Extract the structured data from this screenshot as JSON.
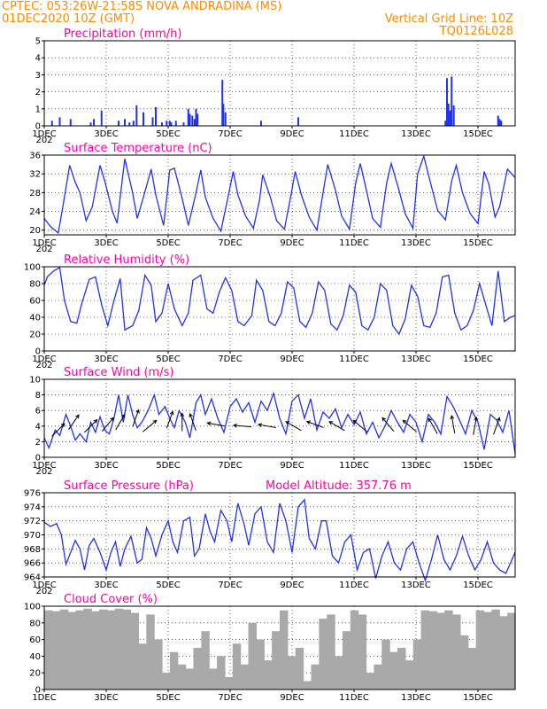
{
  "header": {
    "line1": "CPTEC:   053:26W-21:58S   NOVA ANDRADINA (MS)",
    "line2_left": "01DEC2020 10Z (GMT)",
    "line2_right": "Vertical Grid Line: 10Z",
    "code": "TQ0126L028"
  },
  "colors": {
    "header": "#ff8c00",
    "title": "#ff00aa",
    "series": "#2233ee",
    "cloud": "#a9a9a9",
    "grid": "#000000"
  },
  "time_axis": {
    "start_day": 1,
    "end_day": 16.2,
    "ticks": [
      {
        "day": 1,
        "label": "1DEC"
      },
      {
        "day": 3,
        "label": "3DEC"
      },
      {
        "day": 5,
        "label": "5DEC"
      },
      {
        "day": 7,
        "label": "7DEC"
      },
      {
        "day": 9,
        "label": "9DEC"
      },
      {
        "day": 11,
        "label": "11DEC"
      },
      {
        "day": 13,
        "label": "13DEC"
      },
      {
        "day": 15,
        "label": "15DEC"
      }
    ],
    "year_fragment": "202"
  },
  "chart_data": [
    {
      "type": "bar",
      "title": "Precipitation  (mm/h)",
      "ylim": [
        0,
        5
      ],
      "yticks": [
        0,
        1,
        2,
        3,
        4,
        5
      ],
      "x": [
        1.25,
        1.5,
        1.85,
        2.5,
        2.6,
        2.85,
        3.4,
        3.6,
        3.75,
        3.88,
        3.98,
        4.2,
        4.5,
        4.6,
        4.8,
        4.95,
        5.05,
        5.1,
        5.25,
        5.5,
        5.65,
        5.7,
        5.78,
        5.85,
        5.9,
        5.95,
        6.75,
        6.78,
        6.85,
        8.0,
        9.2,
        13.95,
        14.0,
        14.05,
        14.1,
        14.15,
        14.22,
        15.65,
        15.7,
        15.75
      ],
      "values": [
        0.3,
        0.5,
        0.4,
        0.2,
        0.4,
        0.9,
        0.3,
        0.4,
        0.2,
        0.3,
        1.2,
        0.8,
        0.5,
        1.1,
        0.2,
        0.3,
        0.3,
        0.2,
        0.3,
        0.2,
        1.0,
        0.7,
        0.6,
        0.4,
        1.0,
        0.7,
        2.7,
        1.3,
        0.8,
        0.3,
        0.5,
        0.3,
        2.8,
        1.3,
        0.9,
        2.9,
        1.2,
        0.6,
        0.4,
        0.3
      ]
    },
    {
      "type": "line",
      "title": "Surface Temperature (nC)",
      "ylim": [
        19,
        36
      ],
      "yticks": [
        20,
        24,
        28,
        32,
        36
      ],
      "x": [
        1.0,
        1.2,
        1.45,
        1.6,
        1.82,
        2.0,
        2.15,
        2.35,
        2.55,
        2.8,
        2.95,
        3.2,
        3.35,
        3.6,
        3.85,
        4.0,
        4.2,
        4.45,
        4.6,
        4.85,
        5.05,
        5.2,
        5.45,
        5.65,
        5.9,
        6.05,
        6.2,
        6.45,
        6.7,
        6.9,
        7.1,
        7.25,
        7.5,
        7.75,
        7.95,
        8.05,
        8.3,
        8.5,
        8.75,
        8.95,
        9.1,
        9.3,
        9.55,
        9.8,
        10.0,
        10.15,
        10.4,
        10.6,
        10.85,
        11.05,
        11.2,
        11.4,
        11.6,
        11.85,
        12.05,
        12.2,
        12.45,
        12.65,
        12.9,
        13.05,
        13.25,
        13.45,
        13.7,
        13.95,
        14.15,
        14.3,
        14.5,
        14.75,
        15.0,
        15.2,
        15.35,
        15.55,
        15.7,
        15.95,
        16.2
      ],
      "values": [
        22.5,
        20.8,
        19.4,
        25.0,
        33.8,
        30.2,
        28.0,
        22.0,
        25.0,
        33.8,
        30.5,
        24.0,
        21.5,
        35.2,
        28.0,
        22.5,
        27.0,
        33.0,
        27.5,
        21.0,
        32.8,
        33.2,
        26.8,
        21.0,
        28.0,
        32.8,
        27.0,
        22.5,
        19.8,
        26.0,
        32.5,
        27.5,
        23.0,
        20.4,
        26.5,
        31.8,
        27.0,
        22.0,
        20.2,
        27.0,
        32.5,
        27.5,
        22.8,
        20.0,
        28.0,
        34.0,
        28.5,
        23.0,
        20.2,
        30.0,
        34.2,
        28.5,
        22.5,
        20.6,
        30.0,
        34.2,
        28.5,
        23.5,
        20.4,
        32.0,
        35.8,
        30.5,
        24.2,
        22.2,
        30.5,
        33.8,
        28.0,
        23.5,
        21.4,
        32.5,
        29.8,
        22.8,
        25.0,
        33.0,
        31.2
      ]
    },
    {
      "type": "line",
      "title": "Relative Humidity  (%)",
      "ylim": [
        0,
        100
      ],
      "yticks": [
        0,
        20,
        40,
        60,
        80,
        100
      ],
      "x": [
        1.0,
        1.1,
        1.3,
        1.5,
        1.65,
        1.85,
        2.05,
        2.2,
        2.45,
        2.65,
        2.85,
        3.05,
        3.25,
        3.45,
        3.6,
        3.85,
        4.05,
        4.25,
        4.45,
        4.6,
        4.8,
        5.0,
        5.2,
        5.45,
        5.65,
        5.8,
        6.05,
        6.25,
        6.45,
        6.65,
        6.85,
        7.05,
        7.25,
        7.45,
        7.7,
        7.85,
        8.05,
        8.25,
        8.45,
        8.65,
        8.85,
        9.05,
        9.25,
        9.45,
        9.65,
        9.85,
        10.05,
        10.25,
        10.45,
        10.65,
        10.85,
        11.05,
        11.25,
        11.45,
        11.65,
        11.85,
        12.05,
        12.25,
        12.45,
        12.65,
        12.85,
        13.05,
        13.25,
        13.45,
        13.65,
        13.85,
        14.05,
        14.25,
        14.45,
        14.65,
        14.85,
        15.05,
        15.25,
        15.45,
        15.65,
        15.85,
        16.05,
        16.2
      ],
      "values": [
        78,
        88,
        95,
        99,
        60,
        35,
        33,
        55,
        85,
        88,
        55,
        30,
        60,
        86,
        25,
        30,
        48,
        90,
        78,
        35,
        45,
        80,
        50,
        30,
        45,
        84,
        90,
        50,
        45,
        70,
        87,
        72,
        35,
        30,
        42,
        84,
        72,
        35,
        30,
        45,
        82,
        75,
        35,
        28,
        45,
        82,
        72,
        32,
        25,
        42,
        78,
        70,
        30,
        25,
        40,
        80,
        72,
        30,
        20,
        38,
        78,
        65,
        30,
        28,
        45,
        88,
        90,
        45,
        25,
        30,
        48,
        80,
        55,
        30,
        95,
        35,
        40,
        42
      ]
    },
    {
      "type": "line",
      "title": "Surface Wind  (m/s)",
      "ylim": [
        0,
        10
      ],
      "yticks": [
        0,
        2,
        4,
        6,
        8,
        10
      ],
      "x": [
        1.0,
        1.15,
        1.35,
        1.5,
        1.7,
        1.85,
        2.0,
        2.15,
        2.35,
        2.5,
        2.65,
        2.8,
        2.95,
        3.1,
        3.25,
        3.4,
        3.55,
        3.7,
        3.85,
        4.0,
        4.15,
        4.35,
        4.55,
        4.7,
        4.9,
        5.05,
        5.2,
        5.35,
        5.55,
        5.7,
        5.9,
        6.05,
        6.2,
        6.4,
        6.6,
        6.8,
        7.0,
        7.2,
        7.4,
        7.6,
        7.8,
        8.0,
        8.2,
        8.4,
        8.6,
        8.8,
        9.0,
        9.2,
        9.4,
        9.6,
        9.8,
        10.0,
        10.2,
        10.4,
        10.6,
        10.8,
        11.0,
        11.2,
        11.4,
        11.6,
        11.8,
        12.0,
        12.2,
        12.4,
        12.6,
        12.8,
        13.0,
        13.2,
        13.4,
        13.6,
        13.8,
        14.0,
        14.2,
        14.4,
        14.6,
        14.8,
        15.0,
        15.2,
        15.4,
        15.6,
        15.8,
        16.0,
        16.2
      ],
      "values": [
        2.5,
        1.2,
        3.5,
        2.8,
        5.5,
        4.0,
        2.2,
        3.0,
        2.0,
        4.5,
        3.2,
        5.2,
        3.5,
        3.0,
        5.0,
        8.0,
        4.5,
        8.0,
        5.5,
        3.8,
        4.5,
        6.0,
        8.0,
        5.5,
        6.5,
        5.0,
        3.8,
        6.0,
        4.5,
        2.5,
        7.0,
        8.0,
        5.5,
        7.5,
        5.0,
        3.2,
        6.5,
        7.5,
        5.8,
        7.0,
        4.5,
        7.2,
        6.0,
        8.2,
        5.0,
        3.0,
        7.2,
        8.0,
        5.0,
        7.5,
        3.5,
        5.8,
        5.0,
        6.2,
        3.8,
        5.5,
        4.2,
        5.8,
        3.0,
        4.5,
        2.5,
        4.0,
        6.0,
        4.5,
        3.2,
        5.5,
        4.5,
        2.0,
        5.5,
        4.5,
        3.0,
        7.8,
        6.5,
        4.8,
        3.0,
        6.0,
        4.5,
        1.0,
        5.5,
        4.8,
        3.2,
        6.0,
        0.5
      ],
      "barbs": [
        {
          "day": 1.45,
          "speed": 3.5,
          "dir": 225
        },
        {
          "day": 1.95,
          "speed": 4.5,
          "dir": 215
        },
        {
          "day": 2.5,
          "speed": 4.0,
          "dir": 225
        },
        {
          "day": 3.05,
          "speed": 4.2,
          "dir": 220
        },
        {
          "day": 3.45,
          "speed": 4.5,
          "dir": 210
        },
        {
          "day": 3.95,
          "speed": 5.0,
          "dir": 200
        },
        {
          "day": 4.4,
          "speed": 4.0,
          "dir": 230
        },
        {
          "day": 5.05,
          "speed": 4.8,
          "dir": 200
        },
        {
          "day": 5.45,
          "speed": 4.5,
          "dir": 180
        },
        {
          "day": 5.8,
          "speed": 4.5,
          "dir": 160
        },
        {
          "day": 6.55,
          "speed": 4.2,
          "dir": 100
        },
        {
          "day": 7.4,
          "speed": 4.0,
          "dir": 95
        },
        {
          "day": 8.2,
          "speed": 4.0,
          "dir": 100
        },
        {
          "day": 9.05,
          "speed": 4.0,
          "dir": 120
        },
        {
          "day": 9.75,
          "speed": 4.2,
          "dir": 110
        },
        {
          "day": 10.45,
          "speed": 4.0,
          "dir": 120
        },
        {
          "day": 11.2,
          "speed": 4.0,
          "dir": 130
        },
        {
          "day": 12.1,
          "speed": 4.2,
          "dir": 140
        },
        {
          "day": 12.8,
          "speed": 4.0,
          "dir": 130
        },
        {
          "day": 13.55,
          "speed": 4.0,
          "dir": 150
        },
        {
          "day": 14.2,
          "speed": 4.2,
          "dir": 170
        },
        {
          "day": 14.9,
          "speed": 4.0,
          "dir": 190
        },
        {
          "day": 15.6,
          "speed": 4.0,
          "dir": 200
        }
      ]
    },
    {
      "type": "line",
      "title": "Surface Pressure (hPa)",
      "annotation": "Model Altitude: 357.76 m",
      "ylim": [
        964,
        976
      ],
      "yticks": [
        964,
        966,
        968,
        970,
        972,
        974,
        976
      ],
      "x": [
        1.0,
        1.2,
        1.4,
        1.55,
        1.7,
        1.85,
        2.0,
        2.15,
        2.3,
        2.45,
        2.6,
        2.8,
        3.0,
        3.15,
        3.3,
        3.45,
        3.6,
        3.8,
        4.0,
        4.15,
        4.3,
        4.45,
        4.6,
        4.8,
        5.0,
        5.15,
        5.3,
        5.5,
        5.7,
        5.85,
        6.0,
        6.2,
        6.35,
        6.5,
        6.7,
        6.9,
        7.05,
        7.25,
        7.45,
        7.6,
        7.8,
        8.0,
        8.2,
        8.4,
        8.6,
        8.8,
        9.0,
        9.2,
        9.4,
        9.55,
        9.75,
        9.95,
        10.1,
        10.3,
        10.5,
        10.7,
        10.9,
        11.1,
        11.3,
        11.5,
        11.7,
        11.9,
        12.1,
        12.3,
        12.5,
        12.7,
        12.9,
        13.1,
        13.3,
        13.5,
        13.7,
        13.9,
        14.1,
        14.3,
        14.5,
        14.7,
        14.9,
        15.1,
        15.3,
        15.5,
        15.7,
        15.9,
        16.2
      ],
      "values": [
        971.8,
        971.2,
        971.6,
        970.0,
        965.8,
        967.5,
        969.2,
        968.0,
        965.0,
        968.5,
        969.5,
        967.5,
        965.0,
        967.5,
        969.0,
        965.5,
        968.0,
        969.8,
        966.0,
        966.5,
        971.0,
        969.5,
        967.0,
        970.0,
        972.0,
        969.0,
        967.5,
        972.0,
        972.5,
        967.0,
        968.0,
        973.0,
        970.5,
        969.0,
        973.5,
        972.0,
        969.0,
        974.5,
        971.5,
        968.5,
        973.0,
        974.0,
        969.0,
        967.5,
        974.5,
        972.0,
        967.5,
        974.0,
        975.0,
        969.5,
        968.0,
        972.0,
        972.0,
        967.0,
        966.0,
        969.0,
        970.0,
        965.0,
        967.5,
        968.0,
        963.8,
        967.0,
        969.0,
        966.0,
        965.0,
        968.0,
        969.0,
        966.0,
        963.5,
        966.5,
        970.0,
        966.5,
        965.0,
        967.0,
        969.8,
        967.0,
        965.0,
        966.5,
        969.0,
        966.0,
        965.0,
        964.5,
        967.5
      ]
    },
    {
      "type": "bar",
      "title": "Cloud Cover  (%)",
      "ylim": [
        0,
        100
      ],
      "yticks": [
        0,
        20,
        40,
        60,
        80,
        100
      ],
      "x": [
        1.0,
        1.5,
        2.0,
        2.5,
        3.0,
        3.5,
        4.0,
        4.5,
        5.0,
        5.5,
        6.0,
        6.5,
        6.7,
        6.9,
        7.1,
        7.3,
        7.5,
        7.7,
        7.9,
        8.1,
        8.3,
        8.5,
        8.7,
        8.9,
        9.1,
        9.3,
        9.5,
        9.7,
        9.9,
        10.1,
        10.3,
        10.5,
        10.7,
        10.9,
        11.1,
        11.3,
        11.5,
        11.7,
        11.9,
        12.1,
        12.3,
        12.5,
        12.7,
        12.9,
        13.1,
        13.3,
        13.5,
        13.7,
        13.9,
        14.1,
        14.3,
        14.5,
        14.7,
        14.9,
        15.1,
        15.3,
        15.5,
        15.7,
        15.9,
        16.1
      ],
      "values": [
        95,
        94,
        96,
        93,
        95,
        97,
        94,
        96,
        95,
        97,
        96,
        92,
        55,
        90,
        60,
        20,
        45,
        30,
        25,
        50,
        70,
        25,
        40,
        15,
        55,
        30,
        80,
        60,
        35,
        70,
        95,
        40,
        50,
        10,
        30,
        85,
        90,
        40,
        70,
        95,
        90,
        20,
        30,
        60,
        45,
        50,
        35,
        60,
        95,
        94,
        92,
        95,
        90,
        65,
        50,
        95,
        93,
        96,
        88,
        92
      ]
    }
  ]
}
